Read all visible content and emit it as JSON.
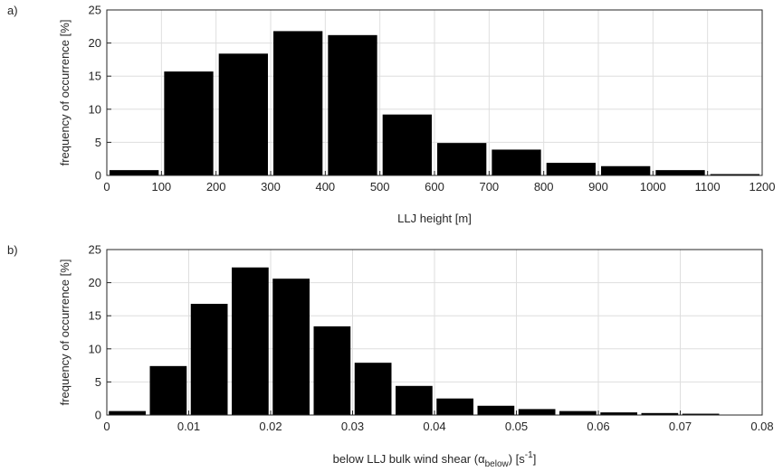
{
  "chart_data": [
    {
      "type": "bar",
      "panel_label": "a)",
      "xlabel": "LLJ height [m]",
      "ylabel": "frequency of occurrence [%]",
      "xlim": [
        0,
        1200
      ],
      "ylim": [
        0,
        25
      ],
      "xticks": [
        0,
        100,
        200,
        300,
        400,
        500,
        600,
        700,
        800,
        900,
        1000,
        1100,
        1200
      ],
      "yticks": [
        0,
        5,
        10,
        15,
        20,
        25
      ],
      "grid": true,
      "bin_width": 100,
      "bars": [
        {
          "x": 50,
          "value": 0.8
        },
        {
          "x": 150,
          "value": 15.7
        },
        {
          "x": 250,
          "value": 18.4
        },
        {
          "x": 350,
          "value": 21.8
        },
        {
          "x": 450,
          "value": 21.2
        },
        {
          "x": 550,
          "value": 9.2
        },
        {
          "x": 650,
          "value": 4.9
        },
        {
          "x": 750,
          "value": 3.9
        },
        {
          "x": 850,
          "value": 1.9
        },
        {
          "x": 950,
          "value": 1.4
        },
        {
          "x": 1050,
          "value": 0.8
        },
        {
          "x": 1150,
          "value": 0.2
        }
      ],
      "bar_color": "#000000"
    },
    {
      "type": "bar",
      "panel_label": "b)",
      "xlabel": "below LLJ bulk wind shear (",
      "xlabel_greek": "α",
      "xlabel_sub": "below",
      "xlabel_unit": ") [s",
      "xlabel_sup": "-1",
      "xlabel_end": "]",
      "ylabel": "frequency of occurrence [%]",
      "xlim": [
        0,
        0.08
      ],
      "ylim": [
        0,
        25
      ],
      "xticks": [
        0,
        0.01,
        0.02,
        0.03,
        0.04,
        0.05,
        0.06,
        0.07,
        0.08
      ],
      "yticks": [
        0,
        5,
        10,
        15,
        20,
        25
      ],
      "grid": true,
      "bin_width": 0.005,
      "bars": [
        {
          "x": 0.0025,
          "value": 0.6
        },
        {
          "x": 0.0075,
          "value": 7.4
        },
        {
          "x": 0.0125,
          "value": 16.8
        },
        {
          "x": 0.0175,
          "value": 22.3
        },
        {
          "x": 0.0225,
          "value": 20.6
        },
        {
          "x": 0.0275,
          "value": 13.4
        },
        {
          "x": 0.0325,
          "value": 7.9
        },
        {
          "x": 0.0375,
          "value": 4.4
        },
        {
          "x": 0.0425,
          "value": 2.5
        },
        {
          "x": 0.0475,
          "value": 1.4
        },
        {
          "x": 0.0525,
          "value": 0.9
        },
        {
          "x": 0.0575,
          "value": 0.6
        },
        {
          "x": 0.0625,
          "value": 0.4
        },
        {
          "x": 0.0675,
          "value": 0.3
        },
        {
          "x": 0.0725,
          "value": 0.2
        }
      ],
      "bar_color": "#000000"
    }
  ]
}
